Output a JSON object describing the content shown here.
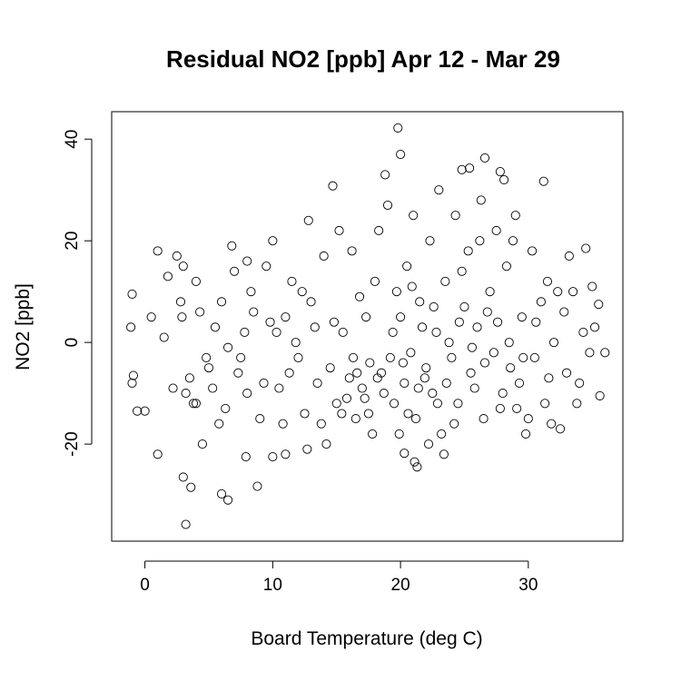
{
  "chart_data": {
    "type": "scatter",
    "title": "Residual NO2 [ppb] Apr 12 - Mar 29",
    "x_label": "Board Temperature (deg C)",
    "y_label": "NO2 [ppb]",
    "xlim": [
      -2.6,
      37.4
    ],
    "ylim": [
      -39.1,
      45.4
    ],
    "xticks": [
      0,
      10,
      20,
      30
    ],
    "yticks": [
      -20,
      0,
      20,
      40
    ],
    "color": "#000000",
    "x": [
      19.8,
      20,
      3.2,
      6.5,
      6,
      14.7,
      26.6,
      25.4,
      24.8,
      27.8,
      18.8,
      31.2,
      1,
      -1,
      -1.1,
      -0.9,
      -1,
      -0.6,
      0,
      1,
      3,
      3.6,
      8.8,
      7.9,
      10,
      36,
      35.5,
      35,
      34.5,
      35.6,
      21.3,
      21.1,
      20.3,
      0.5,
      1.5,
      2.5,
      3,
      4,
      2.8,
      3.2,
      4,
      4.5,
      5,
      5.5,
      6,
      6.8,
      7,
      7.5,
      8,
      8.5,
      9,
      9.5,
      10,
      10.5,
      11,
      11.5,
      12,
      12.5,
      12.8,
      13,
      13.5,
      14,
      14.5,
      15,
      15.2,
      15.5,
      16,
      16.2,
      16.5,
      17,
      17.3,
      17.8,
      18,
      18.5,
      19,
      19.2,
      19.5,
      20,
      20.3,
      20.5,
      20.8,
      21,
      21.2,
      21.5,
      22,
      22.3,
      22.5,
      22.8,
      23,
      23.2,
      23.5,
      24,
      24.3,
      24.5,
      25,
      25.3,
      25.5,
      26,
      26.3,
      26.5,
      27,
      27.3,
      27.5,
      28,
      28.3,
      28.5,
      29,
      29.3,
      29.5,
      30,
      30.3,
      30.5,
      31,
      31.3,
      31.5,
      32,
      32.5,
      32.8,
      33,
      33.5,
      34,
      34.3,
      34.8,
      33.2,
      31.8,
      29.8,
      28.8,
      27.8,
      26.8,
      25.8,
      24.8,
      23.8,
      22.2,
      21.7,
      20.6,
      19.7,
      18.7,
      17.6,
      16.8,
      15.8,
      14.8,
      13.8,
      12.3,
      11.3,
      10.3,
      9.3,
      8.3,
      7.3,
      6.3,
      5.3,
      4.3,
      3.5,
      2.2,
      1.8,
      6.5,
      8,
      10.8,
      12.7,
      14.2,
      16.3,
      17.5,
      18.3,
      19.9,
      20.9,
      21.9,
      22.6,
      23.6,
      24.6,
      25.6,
      26.6,
      27.6,
      28.6,
      29.6,
      30.6,
      31.6,
      32.3,
      33.8,
      35.2,
      23.4,
      26.2,
      24.2,
      22.9,
      21.4,
      20.2,
      19.4,
      18.2,
      17.2,
      16.6,
      15.4,
      13.3,
      11.8,
      9.8,
      7.8,
      5.8,
      4.8,
      3.8,
      2.9,
      11,
      28.1,
      29.1
    ],
    "y": [
      42.2,
      37,
      -35.8,
      -31,
      -29.8,
      30.8,
      36.3,
      34.3,
      34,
      33.6,
      33,
      31.7,
      18,
      9.5,
      3,
      -6.5,
      -8,
      -13.5,
      -13.5,
      -22,
      -26.5,
      -28.5,
      -28.3,
      -22.5,
      -22.5,
      -2,
      7.5,
      11,
      18.5,
      -10.5,
      -24.5,
      -23.5,
      -21.8,
      5,
      1,
      17,
      15,
      12,
      8,
      -10,
      -12,
      -20,
      -5,
      3,
      8,
      19,
      14,
      -3,
      -10,
      6,
      -15,
      15,
      20,
      -9,
      5,
      12,
      -3,
      -14,
      24,
      8,
      -8,
      17,
      -5,
      -12,
      22,
      2,
      -7,
      18,
      -15,
      -9,
      5,
      -18,
      12,
      -6,
      27,
      -3,
      -12,
      5,
      -8,
      15,
      -2,
      25,
      -15,
      8,
      -5,
      20,
      -10,
      2,
      30,
      -18,
      12,
      -3,
      25,
      -12,
      7,
      18,
      -6,
      3,
      28,
      -15,
      10,
      -2,
      22,
      -10,
      15,
      0,
      25,
      -8,
      5,
      -15,
      18,
      -3,
      8,
      -12,
      12,
      0,
      -17,
      6,
      -6,
      10,
      -8,
      2,
      -2,
      17,
      -16,
      -18,
      20,
      -13,
      6,
      -9,
      14,
      0,
      -20,
      3,
      -14,
      10,
      -10,
      -4,
      9,
      -11,
      4,
      -16,
      10,
      -6,
      2,
      -8,
      10,
      -6,
      -13,
      -9,
      6,
      -7,
      -9,
      13,
      -1,
      16,
      -16,
      -21,
      -20,
      -3,
      -14,
      22,
      -18,
      11,
      -7,
      7,
      -8,
      4,
      -1,
      -4,
      4,
      -5,
      -3,
      4,
      -7,
      10,
      -12,
      3,
      -22,
      20,
      -16,
      -12,
      -9,
      -4,
      2,
      -7,
      -11,
      -6,
      -14,
      3,
      0,
      4,
      2,
      -16,
      -3,
      -12,
      5,
      -22,
      32,
      -13
    ]
  }
}
